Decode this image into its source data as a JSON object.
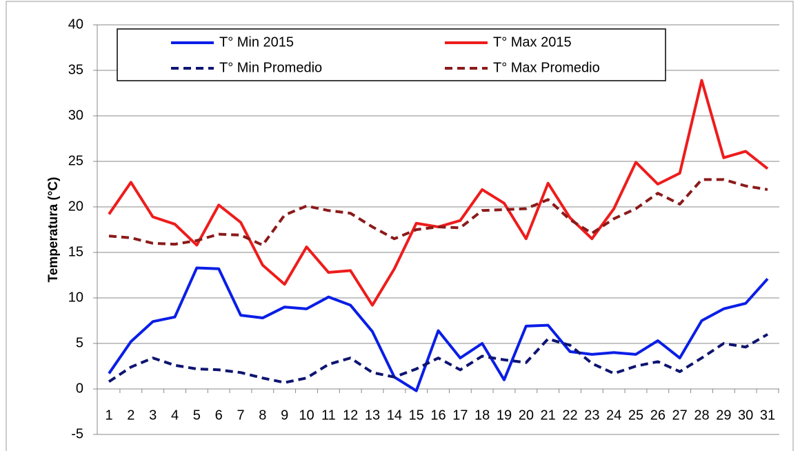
{
  "chart_data": {
    "type": "line",
    "y_label": "Temperatura (°C)",
    "categories": [
      "1",
      "2",
      "3",
      "4",
      "5",
      "6",
      "7",
      "8",
      "9",
      "10",
      "11",
      "12",
      "13",
      "14",
      "15",
      "16",
      "17",
      "18",
      "19",
      "20",
      "21",
      "22",
      "23",
      "24",
      "25",
      "26",
      "27",
      "28",
      "29",
      "30",
      "31"
    ],
    "series": [
      {
        "name": "T° Min 2015",
        "color": "#0a1ee6",
        "dashed": false,
        "values": [
          1.7,
          5.2,
          7.4,
          7.9,
          13.3,
          13.2,
          8.1,
          7.8,
          9.0,
          8.8,
          10.1,
          9.2,
          6.3,
          1.3,
          -0.2,
          6.4,
          3.4,
          5.0,
          1.0,
          6.9,
          7.0,
          4.1,
          3.8,
          4.0,
          3.8,
          5.3,
          3.4,
          7.5,
          8.8,
          9.4,
          12.1
        ]
      },
      {
        "name": "T° Max 2015",
        "color": "#ee1c1c",
        "dashed": false,
        "values": [
          19.2,
          22.7,
          18.9,
          18.1,
          15.8,
          20.2,
          18.3,
          13.6,
          11.5,
          15.6,
          12.8,
          13.0,
          9.2,
          13.2,
          18.2,
          17.8,
          18.5,
          21.9,
          20.4,
          16.5,
          22.6,
          18.8,
          16.5,
          19.8,
          24.9,
          22.5,
          23.7,
          33.9,
          25.4,
          26.1,
          24.2
        ]
      },
      {
        "name": "T° Min Promedio",
        "color": "#0d1470",
        "dashed": true,
        "values": [
          0.8,
          2.4,
          3.4,
          2.6,
          2.2,
          2.1,
          1.8,
          1.2,
          0.7,
          1.2,
          2.7,
          3.4,
          1.8,
          1.3,
          2.2,
          3.4,
          2.1,
          3.6,
          3.2,
          2.9,
          5.5,
          4.8,
          2.8,
          1.7,
          2.5,
          3.0,
          1.9,
          3.4,
          5.0,
          4.6,
          6.0
        ]
      },
      {
        "name": "T° Max Promedio",
        "color": "#8b1a1a",
        "dashed": true,
        "values": [
          16.8,
          16.6,
          16.0,
          15.9,
          16.3,
          17.0,
          16.9,
          15.8,
          19.1,
          20.1,
          19.6,
          19.3,
          17.8,
          16.5,
          17.5,
          17.8,
          17.7,
          19.6,
          19.7,
          19.8,
          20.8,
          18.6,
          17.1,
          18.7,
          19.8,
          21.5,
          20.3,
          23.0,
          23.0,
          22.3,
          21.9
        ]
      }
    ],
    "ylim": [
      -5,
      40
    ],
    "yticks": [
      -5,
      0,
      5,
      10,
      15,
      20,
      25,
      30,
      35,
      40
    ],
    "grid": true
  }
}
